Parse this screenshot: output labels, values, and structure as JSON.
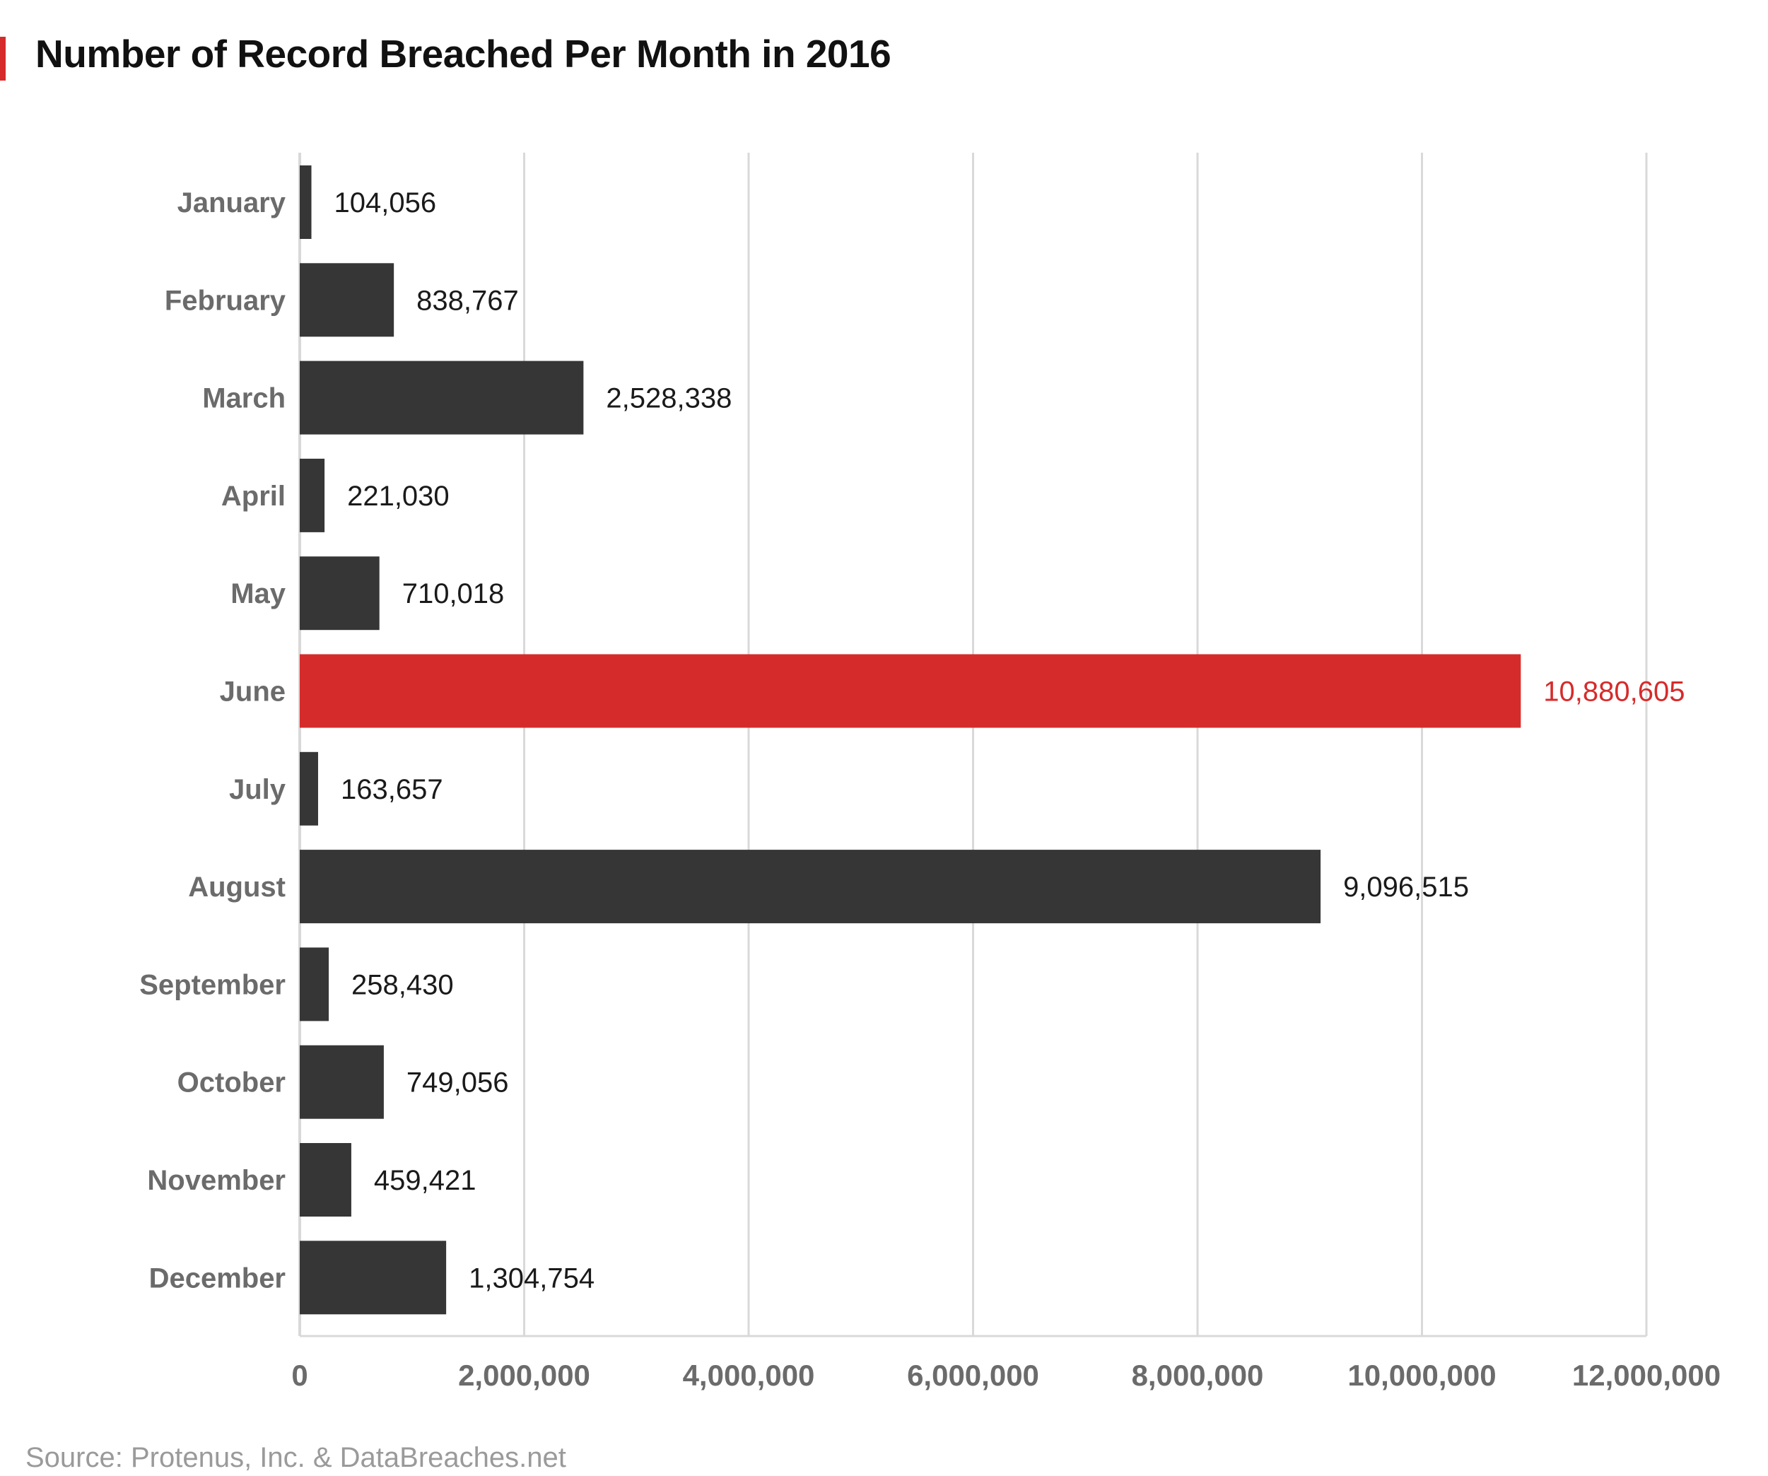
{
  "chart_data": {
    "type": "bar",
    "orientation": "horizontal",
    "title": "Number of Record Breached Per Month in 2016",
    "categories": [
      "January",
      "February",
      "March",
      "April",
      "May",
      "June",
      "July",
      "August",
      "September",
      "October",
      "November",
      "December"
    ],
    "values": [
      104056,
      838767,
      2528338,
      221030,
      710018,
      10880605,
      163657,
      9096515,
      258430,
      749056,
      459421,
      1304754
    ],
    "value_labels": [
      "104,056",
      "838,767",
      "2,528,338",
      "221,030",
      "710,018",
      "10,880,605",
      "163,657",
      "9,096,515",
      "258,430",
      "749,056",
      "459,421",
      "1,304,754"
    ],
    "highlight_category": "June",
    "xlim": [
      0,
      12000000
    ],
    "x_ticks": [
      0,
      2000000,
      4000000,
      6000000,
      8000000,
      10000000,
      12000000
    ],
    "x_tick_labels": [
      "0",
      "2,000,000",
      "4,000,000",
      "6,000,000",
      "8,000,000",
      "10,000,000",
      "12,000,000"
    ],
    "grid": "vertical",
    "legend": "none",
    "colors": {
      "bar": "#363636",
      "highlight": "#d62b2b",
      "accent": "#d62b2b",
      "grid": "#d9d9d9",
      "axis_label": "#6b6b6b",
      "value_label": "#1a1a1a"
    }
  },
  "source": "Source: Protenus, Inc. & DataBreaches.net"
}
